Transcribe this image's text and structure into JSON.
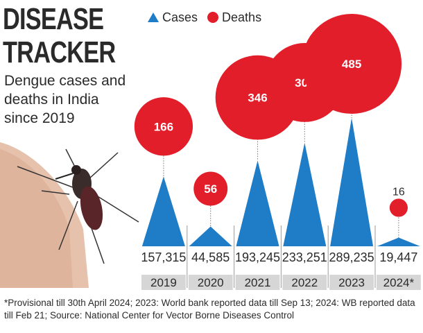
{
  "title_lines": [
    "DISEASE",
    "TRACKER"
  ],
  "subtitle": "Dengue cases and deaths in India since 2019",
  "legend": {
    "cases": "Cases",
    "deaths": "Deaths"
  },
  "colors": {
    "cases": "#1f7cc7",
    "deaths": "#e31e2b",
    "year_bar": "#d6d6d6",
    "text": "#2a2a2a"
  },
  "chart_data": {
    "type": "bubble-triangle",
    "categories": [
      "2019",
      "2020",
      "2021",
      "2022",
      "2023",
      "2024*"
    ],
    "series": [
      {
        "name": "Cases",
        "values": [
          157315,
          44585,
          193245,
          233251,
          289235,
          19447
        ],
        "labels": [
          "157,315",
          "44,585",
          "193,245",
          "233,251",
          "289,235",
          "19,447"
        ]
      },
      {
        "name": "Deaths",
        "values": [
          166,
          56,
          346,
          303,
          485,
          16
        ],
        "labels": [
          "166",
          "56",
          "346",
          "303",
          "485",
          "16"
        ]
      }
    ]
  },
  "footnote": "*Provisional till 30th April 2024; 2023: World bank reported data till Sep 13; 2024: WB reported data till Feb 21; Source: National Center for Vector Borne Diseases Control"
}
